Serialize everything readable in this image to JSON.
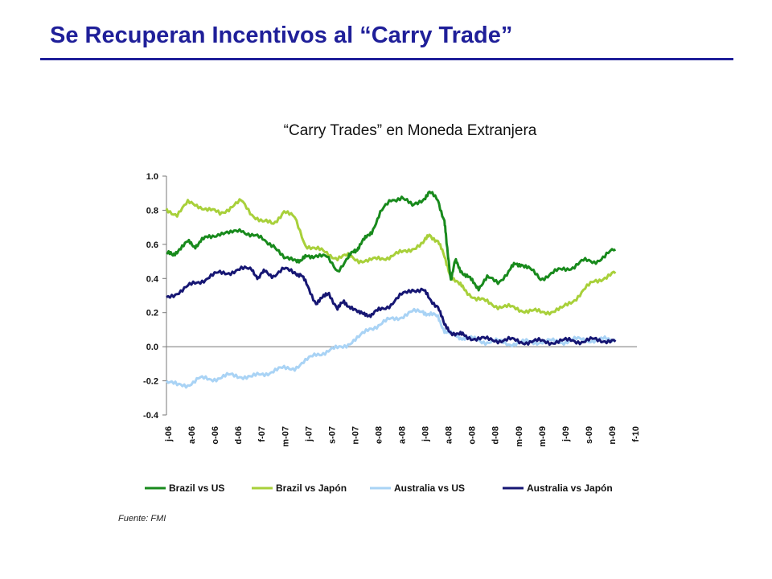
{
  "page": {
    "title": "Se Recuperan Incentivos al “Carry Trade”",
    "source": "Fuente: FMI"
  },
  "colors": {
    "title": "#1f1f99",
    "brazil_us": "#188a1c",
    "brazil_japon": "#a8d03a",
    "australia_us": "#a9d3f5",
    "australia_japon": "#161673"
  },
  "chart_data": {
    "type": "line",
    "title": "“Carry Trades” en Moneda Extranjera",
    "xlabel": "",
    "ylabel": "",
    "ylim": [
      -0.4,
      1.0
    ],
    "yticks": [
      1.0,
      0.8,
      0.6,
      0.4,
      0.2,
      0.0,
      -0.2,
      -0.4
    ],
    "ytick_labels": [
      "1.0",
      "0.8",
      "0.6",
      "0.4",
      "0.2",
      "0.0",
      "-0.2",
      "-0.4"
    ],
    "x_tick_labels": [
      "j-06",
      "a-06",
      "o-06",
      "d-06",
      "f-07",
      "m-07",
      "j-07",
      "s-07",
      "n-07",
      "e-08",
      "a-08",
      "j-08",
      "a-08",
      "o-08",
      "d-08",
      "m-09",
      "m-09",
      "j-09",
      "s-09",
      "n-09",
      "f-10"
    ],
    "x_range": [
      0,
      22
    ],
    "grid": false,
    "zero_line": true,
    "legend_position": "bottom",
    "series": [
      {
        "name": "Brazil vs US",
        "color": "#188a1c",
        "x": [
          0,
          0.3,
          0.6,
          1,
          1.3,
          1.6,
          2,
          2.5,
          3,
          3.5,
          4,
          4.5,
          5,
          5.5,
          6,
          6.3,
          6.6,
          7,
          7.5,
          8,
          8.5,
          8.8,
          9,
          9.3,
          9.6,
          10,
          10.5,
          11,
          11.5,
          12,
          12.3,
          12.7,
          13,
          13.1,
          13.3,
          13.5,
          13.7,
          14,
          14.3,
          14.6,
          15,
          15.5,
          16,
          16.3,
          16.6,
          17,
          17.5,
          18,
          18.5,
          19,
          19.5,
          20,
          20.5,
          21
        ],
        "y": [
          0.55,
          0.53,
          0.58,
          0.61,
          0.59,
          0.62,
          0.64,
          0.67,
          0.66,
          0.69,
          0.65,
          0.63,
          0.6,
          0.51,
          0.52,
          0.5,
          0.53,
          0.54,
          0.52,
          0.45,
          0.52,
          0.56,
          0.59,
          0.63,
          0.68,
          0.78,
          0.86,
          0.88,
          0.82,
          0.87,
          0.9,
          0.86,
          0.74,
          0.6,
          0.4,
          0.5,
          0.46,
          0.42,
          0.38,
          0.35,
          0.4,
          0.38,
          0.44,
          0.48,
          0.49,
          0.45,
          0.4,
          0.43,
          0.45,
          0.47,
          0.5,
          0.5,
          0.53,
          0.57
        ]
      },
      {
        "name": "Brazil vs Japón",
        "color": "#a8d03a",
        "x": [
          0,
          0.5,
          1,
          1.5,
          2,
          2.5,
          3,
          3.5,
          4,
          4.5,
          5,
          5.5,
          6,
          6.5,
          7,
          7.5,
          8,
          8.5,
          9,
          9.5,
          10,
          10.5,
          11,
          11.5,
          12,
          12.3,
          12.7,
          13,
          13.3,
          13.7,
          14,
          14.5,
          15,
          15.5,
          16,
          16.5,
          17,
          17.5,
          18,
          18.5,
          19,
          19.5,
          20,
          20.5,
          21
        ],
        "y": [
          0.8,
          0.78,
          0.84,
          0.83,
          0.8,
          0.78,
          0.82,
          0.85,
          0.78,
          0.73,
          0.72,
          0.8,
          0.75,
          0.6,
          0.57,
          0.55,
          0.52,
          0.53,
          0.51,
          0.5,
          0.52,
          0.53,
          0.55,
          0.58,
          0.6,
          0.66,
          0.62,
          0.52,
          0.42,
          0.36,
          0.33,
          0.28,
          0.26,
          0.24,
          0.23,
          0.22,
          0.21,
          0.2,
          0.21,
          0.22,
          0.27,
          0.33,
          0.38,
          0.41,
          0.43
        ]
      },
      {
        "name": "Australia vs US",
        "color": "#a9d3f5",
        "x": [
          0,
          0.5,
          1,
          1.5,
          2,
          2.5,
          3,
          3.5,
          4,
          4.5,
          5,
          5.5,
          6,
          6.5,
          7,
          7.5,
          8,
          8.5,
          9,
          9.5,
          10,
          10.5,
          11,
          11.5,
          12,
          12.3,
          12.7,
          13,
          13.3,
          13.7,
          14,
          14.5,
          15,
          15.5,
          16,
          16.5,
          17,
          17.5,
          18,
          18.5,
          19,
          19.5,
          20,
          20.5,
          21
        ],
        "y": [
          -0.2,
          -0.23,
          -0.22,
          -0.19,
          -0.19,
          -0.18,
          -0.17,
          -0.17,
          -0.18,
          -0.16,
          -0.14,
          -0.13,
          -0.12,
          -0.09,
          -0.04,
          -0.03,
          -0.01,
          0.02,
          0.05,
          0.11,
          0.13,
          0.16,
          0.18,
          0.2,
          0.21,
          0.19,
          0.17,
          0.1,
          0.07,
          0.06,
          0.05,
          0.04,
          0.03,
          0.03,
          0.02,
          0.02,
          0.03,
          0.03,
          0.03,
          0.03,
          0.04,
          0.04,
          0.04,
          0.04,
          0.04
        ]
      },
      {
        "name": "Australia vs Japón",
        "color": "#161673",
        "x": [
          0,
          0.5,
          1,
          1.5,
          2,
          2.5,
          3,
          3.5,
          4,
          4.3,
          4.6,
          5,
          5.5,
          6,
          6.3,
          6.6,
          7,
          7.3,
          7.6,
          8,
          8.3,
          8.6,
          9,
          9.3,
          9.6,
          10,
          10.5,
          11,
          11.5,
          12,
          12.3,
          12.7,
          13,
          13.3,
          13.7,
          14,
          14.5,
          15,
          15.5,
          16,
          16.5,
          17,
          17.5,
          18,
          18.5,
          19,
          19.5,
          20,
          20.5,
          21
        ],
        "y": [
          0.28,
          0.32,
          0.35,
          0.38,
          0.41,
          0.43,
          0.44,
          0.45,
          0.46,
          0.4,
          0.44,
          0.42,
          0.45,
          0.44,
          0.42,
          0.35,
          0.26,
          0.28,
          0.32,
          0.22,
          0.26,
          0.24,
          0.19,
          0.2,
          0.18,
          0.22,
          0.25,
          0.3,
          0.34,
          0.33,
          0.28,
          0.24,
          0.12,
          0.09,
          0.07,
          0.06,
          0.05,
          0.04,
          0.04,
          0.04,
          0.03,
          0.03,
          0.03,
          0.03,
          0.03,
          0.04,
          0.03,
          0.04,
          0.04,
          0.03
        ]
      }
    ]
  }
}
